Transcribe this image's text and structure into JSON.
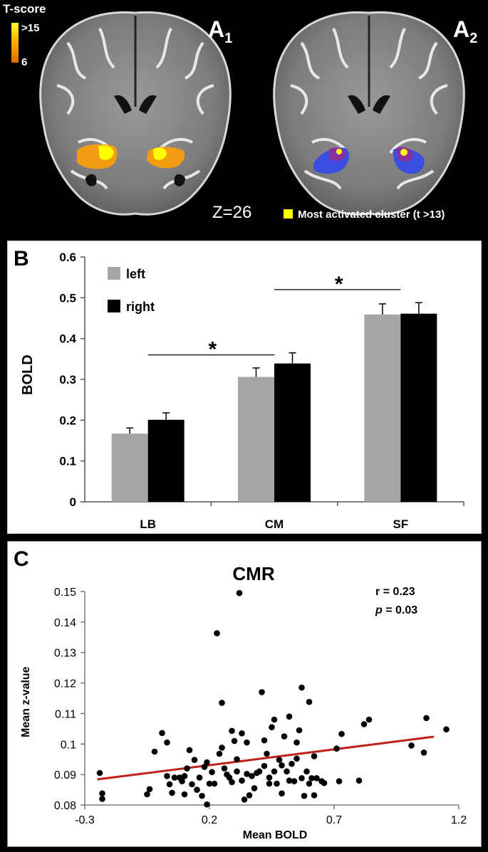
{
  "panel_a": {
    "colorbar_title": "T-score",
    "colorbar_max": ">15",
    "colorbar_min": "6",
    "label_a1_letter": "A",
    "label_a1_sub": "1",
    "label_a2_letter": "A",
    "label_a2_sub": "2",
    "slice_label": "Z=26",
    "legend_label": "Most activated cluster (t >13)",
    "colors": {
      "orange": "#f39c12",
      "yellow": "#ffff00",
      "blue": "#3a4ee0",
      "purple": "#8b2f9a"
    }
  },
  "chart_data": [
    {
      "panel_label": "B",
      "type": "bar",
      "categories": [
        "LB",
        "CM",
        "SF"
      ],
      "series": [
        {
          "name": "left",
          "color": "#a6a6a6",
          "values": [
            0.167,
            0.306,
            0.459
          ],
          "errors": [
            0.014,
            0.022,
            0.026
          ]
        },
        {
          "name": "right",
          "color": "#000000",
          "values": [
            0.201,
            0.339,
            0.461
          ],
          "errors": [
            0.017,
            0.026,
            0.027
          ]
        }
      ],
      "ylabel": "BOLD",
      "ylim": [
        0,
        0.6
      ],
      "yticks": [
        "0",
        "0.1",
        "0.2",
        "0.3",
        "0.4",
        "0.5",
        "0.6"
      ],
      "significance": [
        {
          "from": "LB",
          "to": "CM",
          "y": 0.36,
          "mark": "*"
        },
        {
          "from": "CM",
          "to": "SF",
          "y": 0.52,
          "mark": "*"
        }
      ],
      "legend": "top-left"
    },
    {
      "panel_label": "C",
      "type": "scatter",
      "title": "CMR",
      "xlabel": "Mean BOLD",
      "ylabel": "Mean z-value",
      "xlim": [
        -0.3,
        1.2
      ],
      "ylim": [
        0.08,
        0.15
      ],
      "xticks": [
        "-0.3",
        "0.2",
        "0.7",
        "1.2"
      ],
      "yticks": [
        "0.08",
        "0.09",
        "0.1",
        "0.11",
        "0.12",
        "0.13",
        "0.14",
        "0.15"
      ],
      "annotation_r": "r = 0.23",
      "annotation_p_symbol": "p",
      "annotation_p_value": " = 0.03",
      "fit_line": {
        "x": [
          -0.25,
          1.1
        ],
        "y": [
          0.0884,
          0.1024
        ],
        "color": "#c0201a"
      },
      "points": [
        [
          -0.24,
          0.0905
        ],
        [
          -0.23,
          0.0838
        ],
        [
          -0.23,
          0.082
        ],
        [
          -0.05,
          0.0835
        ],
        [
          -0.04,
          0.0852
        ],
        [
          -0.02,
          0.0975
        ],
        [
          0.01,
          0.1036
        ],
        [
          0.03,
          0.0895
        ],
        [
          0.03,
          0.1005
        ],
        [
          0.04,
          0.0868
        ],
        [
          0.05,
          0.084
        ],
        [
          0.06,
          0.089
        ],
        [
          0.08,
          0.089
        ],
        [
          0.09,
          0.0878
        ],
        [
          0.1,
          0.0835
        ],
        [
          0.1,
          0.0895
        ],
        [
          0.11,
          0.092
        ],
        [
          0.12,
          0.098
        ],
        [
          0.13,
          0.0868
        ],
        [
          0.14,
          0.0948
        ],
        [
          0.15,
          0.085
        ],
        [
          0.16,
          0.089
        ],
        [
          0.17,
          0.083
        ],
        [
          0.18,
          0.0925
        ],
        [
          0.19,
          0.094
        ],
        [
          0.19,
          0.0802
        ],
        [
          0.2,
          0.087
        ],
        [
          0.21,
          0.0908
        ],
        [
          0.22,
          0.087
        ],
        [
          0.23,
          0.1363
        ],
        [
          0.24,
          0.0968
        ],
        [
          0.25,
          0.0988
        ],
        [
          0.25,
          0.1135
        ],
        [
          0.26,
          0.092
        ],
        [
          0.27,
          0.09
        ],
        [
          0.28,
          0.089
        ],
        [
          0.29,
          0.1043
        ],
        [
          0.29,
          0.0875
        ],
        [
          0.3,
          0.101
        ],
        [
          0.31,
          0.091
        ],
        [
          0.31,
          0.095
        ],
        [
          0.32,
          0.1495
        ],
        [
          0.33,
          0.1035
        ],
        [
          0.33,
          0.088
        ],
        [
          0.34,
          0.0818
        ],
        [
          0.35,
          0.1005
        ],
        [
          0.35,
          0.0902
        ],
        [
          0.36,
          0.0832
        ],
        [
          0.37,
          0.0895
        ],
        [
          0.38,
          0.0855
        ],
        [
          0.39,
          0.0905
        ],
        [
          0.4,
          0.091
        ],
        [
          0.41,
          0.117
        ],
        [
          0.42,
          0.1012
        ],
        [
          0.42,
          0.0928
        ],
        [
          0.43,
          0.0968
        ],
        [
          0.44,
          0.087
        ],
        [
          0.44,
          0.089
        ],
        [
          0.45,
          0.1055
        ],
        [
          0.46,
          0.091
        ],
        [
          0.46,
          0.108
        ],
        [
          0.47,
          0.087
        ],
        [
          0.48,
          0.0948
        ],
        [
          0.49,
          0.093
        ],
        [
          0.49,
          0.0838
        ],
        [
          0.5,
          0.1025
        ],
        [
          0.51,
          0.091
        ],
        [
          0.52,
          0.088
        ],
        [
          0.52,
          0.109
        ],
        [
          0.53,
          0.0935
        ],
        [
          0.54,
          0.0878
        ],
        [
          0.55,
          0.0952
        ],
        [
          0.55,
          0.1005
        ],
        [
          0.56,
          0.1045
        ],
        [
          0.57,
          0.0888
        ],
        [
          0.57,
          0.1185
        ],
        [
          0.58,
          0.083
        ],
        [
          0.59,
          0.091
        ],
        [
          0.6,
          0.1138
        ],
        [
          0.6,
          0.087
        ],
        [
          0.61,
          0.0888
        ],
        [
          0.62,
          0.0832
        ],
        [
          0.62,
          0.096
        ],
        [
          0.63,
          0.0888
        ],
        [
          0.65,
          0.0878
        ],
        [
          0.66,
          0.0872
        ],
        [
          0.71,
          0.0985
        ],
        [
          0.72,
          0.0878
        ],
        [
          0.73,
          0.1033
        ],
        [
          0.8,
          0.088
        ],
        [
          0.82,
          0.1065
        ],
        [
          0.84,
          0.108
        ],
        [
          1.01,
          0.0995
        ],
        [
          1.06,
          0.0972
        ],
        [
          1.07,
          0.1085
        ],
        [
          1.15,
          0.1048
        ]
      ]
    }
  ]
}
